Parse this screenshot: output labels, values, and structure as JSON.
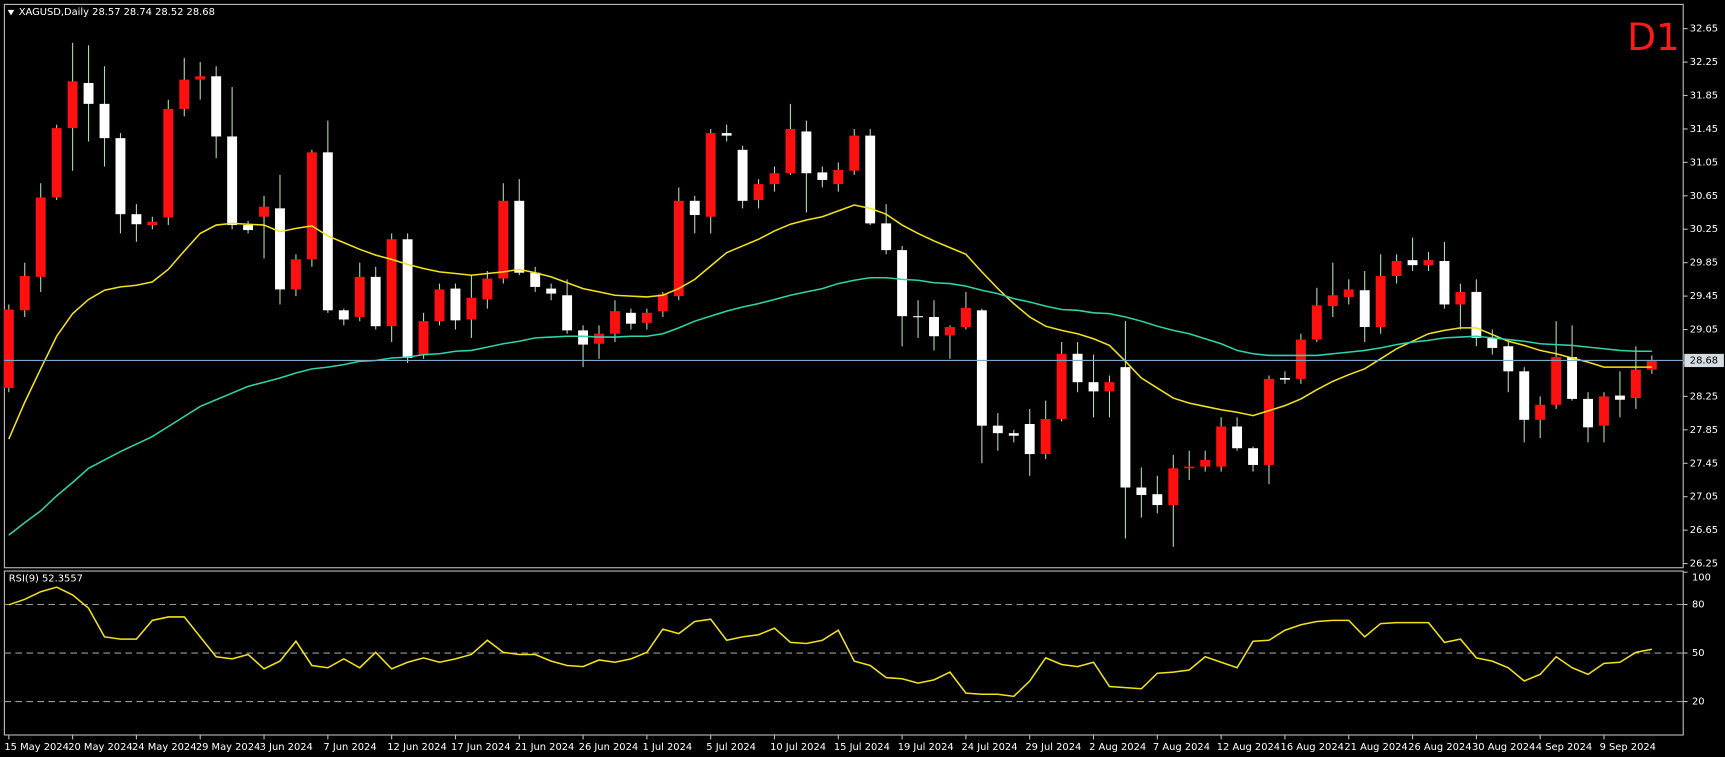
{
  "chart_data": [
    {
      "type": "candlestick",
      "title": "XAGUSD,Daily  28.57 28.74 28.52 28.68",
      "timeframe": "D1",
      "categories": [
        "15 May 2024",
        null,
        null,
        null,
        "20 May 2024",
        null,
        null,
        null,
        "24 May 2024",
        null,
        null,
        null,
        "29 May 2024",
        null,
        null,
        null,
        "3 Jun 2024",
        null,
        null,
        null,
        "7 Jun 2024",
        null,
        null,
        null,
        "12 Jun 2024",
        null,
        null,
        null,
        "17 Jun 2024",
        null,
        null,
        null,
        "21 Jun 2024",
        null,
        null,
        null,
        "26 Jun 2024",
        null,
        null,
        null,
        "1 Jul 2024",
        null,
        null,
        null,
        "5 Jul 2024",
        null,
        null,
        null,
        "10 Jul 2024",
        null,
        null,
        null,
        "15 Jul 2024",
        null,
        null,
        null,
        "19 Jul 2024",
        null,
        null,
        null,
        "24 Jul 2024",
        null,
        null,
        null,
        "29 Jul 2024",
        null,
        null,
        null,
        "2 Aug 2024",
        null,
        null,
        null,
        "7 Aug 2024",
        null,
        null,
        null,
        "12 Aug 2024",
        null,
        null,
        null,
        "16 Aug 2024",
        null,
        null,
        null,
        "21 Aug 2024",
        null,
        null,
        null,
        "26 Aug 2024",
        null,
        null,
        null,
        "30 Aug 2024",
        null,
        null,
        null,
        "4 Sep 2024",
        null,
        null,
        null,
        "9 Sep 2024",
        null,
        null,
        null
      ],
      "open": [
        28.35,
        29.28,
        29.68,
        30.63,
        31.46,
        32.0,
        31.75,
        31.34,
        30.43,
        30.3,
        30.39,
        31.69,
        32.04,
        32.08,
        31.36,
        30.3,
        30.4,
        30.5,
        29.53,
        29.89,
        31.17,
        29.28,
        29.2,
        29.68,
        29.09,
        30.13,
        28.74,
        29.15,
        29.54,
        29.17,
        29.41,
        29.66,
        30.59,
        29.73,
        29.54,
        29.46,
        29.04,
        28.88,
        29.0,
        29.25,
        29.13,
        29.27,
        29.45,
        30.59,
        30.4,
        31.4,
        31.2,
        30.6,
        30.79,
        30.92,
        31.42,
        30.93,
        30.79,
        30.95,
        31.37,
        30.32,
        30.0,
        29.21,
        29.2,
        28.98,
        29.08,
        29.28,
        27.9,
        27.81,
        27.92,
        27.56,
        27.98,
        28.76,
        28.42,
        28.31,
        28.6,
        27.16,
        27.08,
        26.95,
        27.39,
        27.41,
        27.41,
        27.89,
        27.63,
        27.43,
        28.47,
        28.46,
        28.93,
        29.33,
        29.44,
        29.52,
        29.08,
        29.69,
        29.88,
        29.82,
        29.87,
        29.35,
        29.5,
        28.95,
        28.85,
        28.55,
        27.97,
        28.15,
        28.72,
        28.22,
        27.9,
        28.26,
        28.23,
        28.57
      ],
      "high": [
        29.35,
        29.85,
        30.8,
        31.5,
        32.48,
        32.45,
        32.2,
        31.4,
        30.55,
        30.4,
        31.8,
        32.3,
        32.25,
        32.2,
        31.95,
        30.35,
        30.65,
        30.9,
        29.95,
        31.2,
        31.55,
        29.3,
        29.85,
        29.8,
        30.2,
        30.2,
        29.25,
        29.6,
        29.6,
        29.7,
        29.75,
        30.8,
        30.85,
        29.8,
        29.6,
        29.65,
        29.1,
        29.1,
        29.4,
        29.3,
        29.3,
        29.5,
        30.75,
        30.65,
        31.45,
        31.5,
        31.25,
        30.85,
        31.0,
        31.75,
        31.55,
        31.0,
        31.05,
        31.45,
        31.45,
        30.55,
        30.05,
        29.4,
        29.4,
        29.1,
        29.5,
        29.3,
        28.05,
        27.85,
        28.1,
        28.2,
        28.9,
        28.9,
        28.75,
        28.5,
        29.15,
        27.4,
        27.3,
        27.55,
        27.6,
        27.6,
        28.0,
        28.0,
        27.65,
        28.5,
        28.55,
        29.0,
        29.55,
        29.85,
        29.65,
        29.75,
        29.95,
        29.95,
        30.15,
        29.98,
        30.1,
        29.6,
        29.65,
        29.05,
        28.9,
        28.6,
        28.25,
        29.15,
        29.1,
        28.3,
        28.3,
        28.55,
        28.85,
        28.74
      ],
      "low": [
        28.3,
        29.2,
        29.5,
        30.6,
        30.95,
        31.3,
        31.0,
        30.2,
        30.1,
        30.25,
        30.3,
        31.6,
        31.8,
        31.1,
        30.25,
        30.2,
        29.9,
        29.35,
        29.45,
        29.8,
        29.25,
        29.1,
        29.15,
        29.05,
        28.9,
        28.65,
        28.7,
        29.1,
        29.05,
        28.95,
        29.3,
        29.6,
        29.7,
        29.5,
        29.4,
        29.0,
        28.6,
        28.7,
        28.9,
        29.05,
        29.05,
        29.2,
        29.4,
        30.2,
        30.2,
        31.3,
        30.5,
        30.5,
        30.7,
        30.9,
        30.45,
        30.75,
        30.7,
        30.9,
        30.3,
        29.95,
        28.85,
        28.95,
        28.8,
        28.7,
        29.05,
        27.45,
        27.6,
        27.7,
        27.3,
        27.5,
        27.95,
        28.3,
        28.0,
        28.0,
        26.55,
        26.8,
        26.85,
        26.45,
        27.25,
        27.35,
        27.35,
        27.6,
        27.35,
        27.2,
        28.4,
        28.4,
        28.9,
        29.2,
        29.35,
        28.9,
        29.0,
        29.6,
        29.75,
        29.75,
        29.3,
        29.05,
        28.85,
        28.75,
        28.3,
        27.7,
        27.75,
        28.1,
        28.2,
        27.7,
        27.7,
        28.0,
        28.1,
        28.52
      ],
      "close": [
        29.29,
        29.69,
        30.63,
        31.46,
        32.02,
        31.75,
        31.34,
        30.43,
        30.31,
        30.34,
        31.69,
        32.04,
        32.08,
        31.36,
        30.3,
        30.24,
        30.52,
        29.53,
        29.89,
        31.17,
        29.28,
        29.17,
        29.68,
        29.09,
        30.13,
        28.71,
        29.15,
        29.53,
        29.16,
        29.43,
        29.66,
        30.59,
        29.73,
        29.56,
        29.48,
        29.04,
        28.87,
        29.0,
        29.27,
        29.12,
        29.25,
        29.47,
        30.59,
        30.42,
        31.4,
        31.37,
        30.59,
        30.79,
        30.92,
        31.45,
        30.92,
        30.84,
        30.96,
        31.37,
        30.32,
        30.0,
        29.21,
        29.2,
        28.97,
        29.08,
        29.31,
        27.9,
        27.81,
        27.78,
        27.56,
        27.98,
        28.76,
        28.42,
        28.31,
        28.42,
        27.16,
        27.07,
        26.95,
        27.39,
        27.41,
        27.49,
        27.89,
        27.63,
        27.43,
        28.46,
        28.45,
        28.93,
        29.34,
        29.46,
        29.53,
        29.08,
        29.69,
        29.87,
        29.82,
        29.88,
        29.35,
        29.5,
        28.95,
        28.83,
        28.55,
        27.97,
        28.15,
        28.72,
        28.22,
        27.88,
        28.25,
        28.21,
        28.57,
        28.68
      ],
      "up_color": "#ff1010",
      "down_color": "#ffffff",
      "wick_color": "#a8dca8",
      "overlays": [
        {
          "color": "#f2e21a",
          "values": [
            27.74,
            28.18,
            28.58,
            28.97,
            29.24,
            29.41,
            29.52,
            29.56,
            29.58,
            29.62,
            29.77,
            29.99,
            30.2,
            30.3,
            30.32,
            30.31,
            30.3,
            30.22,
            30.26,
            30.29,
            30.17,
            30.09,
            30.01,
            29.94,
            29.89,
            29.83,
            29.78,
            29.74,
            29.72,
            29.7,
            29.72,
            29.74,
            29.77,
            29.73,
            29.68,
            29.61,
            29.54,
            29.5,
            29.46,
            29.45,
            29.44,
            29.46,
            29.54,
            29.65,
            29.81,
            29.97,
            30.05,
            30.13,
            30.23,
            30.31,
            30.36,
            30.4,
            30.47,
            30.54,
            30.5,
            30.43,
            30.3,
            30.2,
            30.11,
            30.03,
            29.95,
            29.74,
            29.54,
            29.36,
            29.2,
            29.09,
            29.04,
            29.0,
            28.94,
            28.86,
            28.67,
            28.47,
            28.35,
            28.23,
            28.17,
            28.13,
            28.09,
            28.06,
            28.02,
            28.08,
            28.14,
            28.22,
            28.33,
            28.43,
            28.51,
            28.58,
            28.7,
            28.82,
            28.91,
            29.0,
            29.04,
            29.07,
            29.07,
            28.99,
            28.91,
            28.86,
            28.8,
            28.76,
            28.71,
            28.66,
            28.6,
            28.6,
            28.6,
            28.6
          ]
        },
        {
          "color": "#2fd3a8",
          "values": [
            26.59,
            26.74,
            26.88,
            27.06,
            27.22,
            27.39,
            27.49,
            27.59,
            27.68,
            27.77,
            27.89,
            28.01,
            28.13,
            28.21,
            28.29,
            28.37,
            28.42,
            28.47,
            28.53,
            28.58,
            28.6,
            28.63,
            28.67,
            28.68,
            28.71,
            28.72,
            28.75,
            28.76,
            28.79,
            28.8,
            28.84,
            28.88,
            28.91,
            28.95,
            28.96,
            28.97,
            28.97,
            28.96,
            28.96,
            28.97,
            28.97,
            29.0,
            29.07,
            29.15,
            29.21,
            29.27,
            29.32,
            29.36,
            29.41,
            29.46,
            29.5,
            29.54,
            29.6,
            29.64,
            29.67,
            29.67,
            29.65,
            29.64,
            29.61,
            29.6,
            29.57,
            29.52,
            29.48,
            29.42,
            29.38,
            29.33,
            29.29,
            29.28,
            29.25,
            29.24,
            29.2,
            29.15,
            29.09,
            29.04,
            29.0,
            28.94,
            28.88,
            28.8,
            28.76,
            28.74,
            28.74,
            28.74,
            28.74,
            28.76,
            28.78,
            28.8,
            28.83,
            28.87,
            28.9,
            28.92,
            28.95,
            28.96,
            28.97,
            28.95,
            28.93,
            28.91,
            28.88,
            28.87,
            28.86,
            28.84,
            28.82,
            28.8,
            28.79,
            28.79
          ]
        }
      ],
      "last_price": 28.68,
      "last_price_color": "#7fa8c4",
      "ylim": [
        26.2,
        32.94
      ],
      "yticks": [
        26.25,
        26.65,
        27.05,
        27.45,
        27.85,
        28.25,
        28.65,
        29.05,
        29.45,
        29.85,
        30.25,
        30.65,
        31.05,
        31.45,
        31.85,
        32.25,
        32.65
      ]
    },
    {
      "type": "line",
      "title": "RSI(9) 52.3557",
      "color": "#f2e21a",
      "values": [
        79.8,
        83.2,
        87.9,
        90.7,
        85.9,
        77.7,
        60,
        58.6,
        58.6,
        70.2,
        72.3,
        72.3,
        60,
        47.7,
        46.4,
        49.1,
        40.2,
        45,
        57.3,
        42.3,
        40.9,
        46.4,
        40.9,
        50.4,
        40.2,
        44.3,
        47,
        44.3,
        46.4,
        49.1,
        57.9,
        50.4,
        49.1,
        49.1,
        45,
        42.3,
        41.6,
        45.7,
        44.3,
        46.4,
        50.4,
        64.8,
        62,
        69.5,
        70.9,
        57.9,
        60,
        61.3,
        65.4,
        56.6,
        55.9,
        57.9,
        64.1,
        45,
        42.3,
        34.8,
        34.1,
        31.4,
        33.4,
        38.2,
        25.2,
        24.5,
        24.5,
        23.2,
        32.7,
        47,
        42.9,
        41.6,
        44.3,
        29.3,
        28.6,
        27.9,
        37.5,
        38.2,
        39.5,
        47.7,
        44.3,
        40.9,
        57.3,
        57.9,
        64.1,
        67.5,
        69.5,
        70.2,
        70.2,
        60,
        68.2,
        68.8,
        68.8,
        68.8,
        56.6,
        58.6,
        47,
        45,
        40.9,
        32.7,
        36.8,
        47.7,
        40.9,
        36.8,
        43.6,
        44.3,
        50.4,
        52.36
      ],
      "ylim": [
        0,
        100
      ],
      "yticks": [
        20,
        50,
        80,
        100
      ],
      "levels": [
        20,
        50,
        80
      ]
    }
  ]
}
